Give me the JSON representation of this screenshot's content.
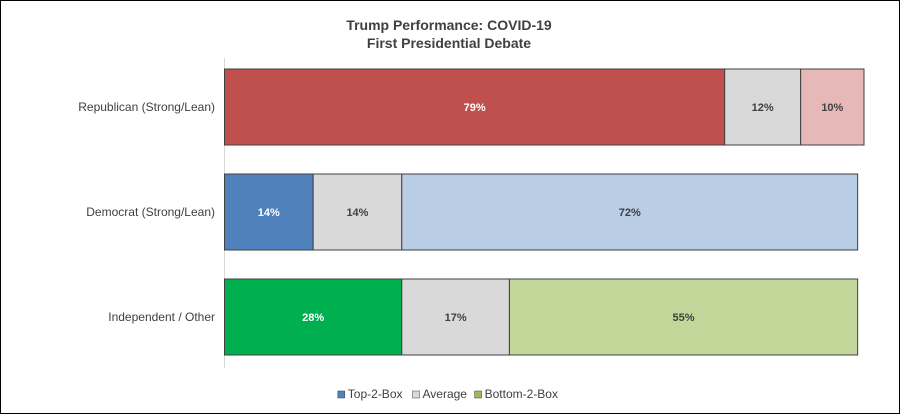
{
  "chart_data": {
    "type": "bar",
    "orientation": "horizontal",
    "stacked": true,
    "title": "Trump Performance:  COVID-19",
    "subtitle": "First Presidential Debate",
    "categories": [
      "Republican (Strong/Lean)",
      "Democrat (Strong/Lean)",
      "Independent / Other"
    ],
    "series": [
      {
        "name": "Top-2-Box",
        "values": [
          79,
          14,
          28
        ],
        "labels": [
          "79%",
          "14%",
          "28%"
        ]
      },
      {
        "name": "Average",
        "values": [
          12,
          14,
          17
        ],
        "labels": [
          "12%",
          "14%",
          "17%"
        ]
      },
      {
        "name": "Bottom-2-Box",
        "values": [
          10,
          72,
          55
        ],
        "labels": [
          "10%",
          "72%",
          "55%"
        ]
      }
    ],
    "segment_colors": [
      [
        "#c0504d",
        "#d9d9d9",
        "#e6b9b8"
      ],
      [
        "#4f81bd",
        "#d9d9d9",
        "#b9cde5"
      ],
      [
        "#00b050",
        "#d9d9d9",
        "#c4d79b"
      ]
    ],
    "label_colors": [
      [
        "#ffffff",
        "#404040",
        "#404040"
      ],
      [
        "#ffffff",
        "#404040",
        "#404040"
      ],
      [
        "#ffffff",
        "#404040",
        "#404040"
      ]
    ],
    "legend": {
      "position": "bottom",
      "items": [
        {
          "name": "Top-2-Box",
          "color": "#4f81bd"
        },
        {
          "name": "Average",
          "color": "#d9d9d9"
        },
        {
          "name": "Bottom-2-Box",
          "color": "#9bbb59"
        }
      ]
    },
    "xlim": [
      0,
      101
    ],
    "grid": false
  }
}
